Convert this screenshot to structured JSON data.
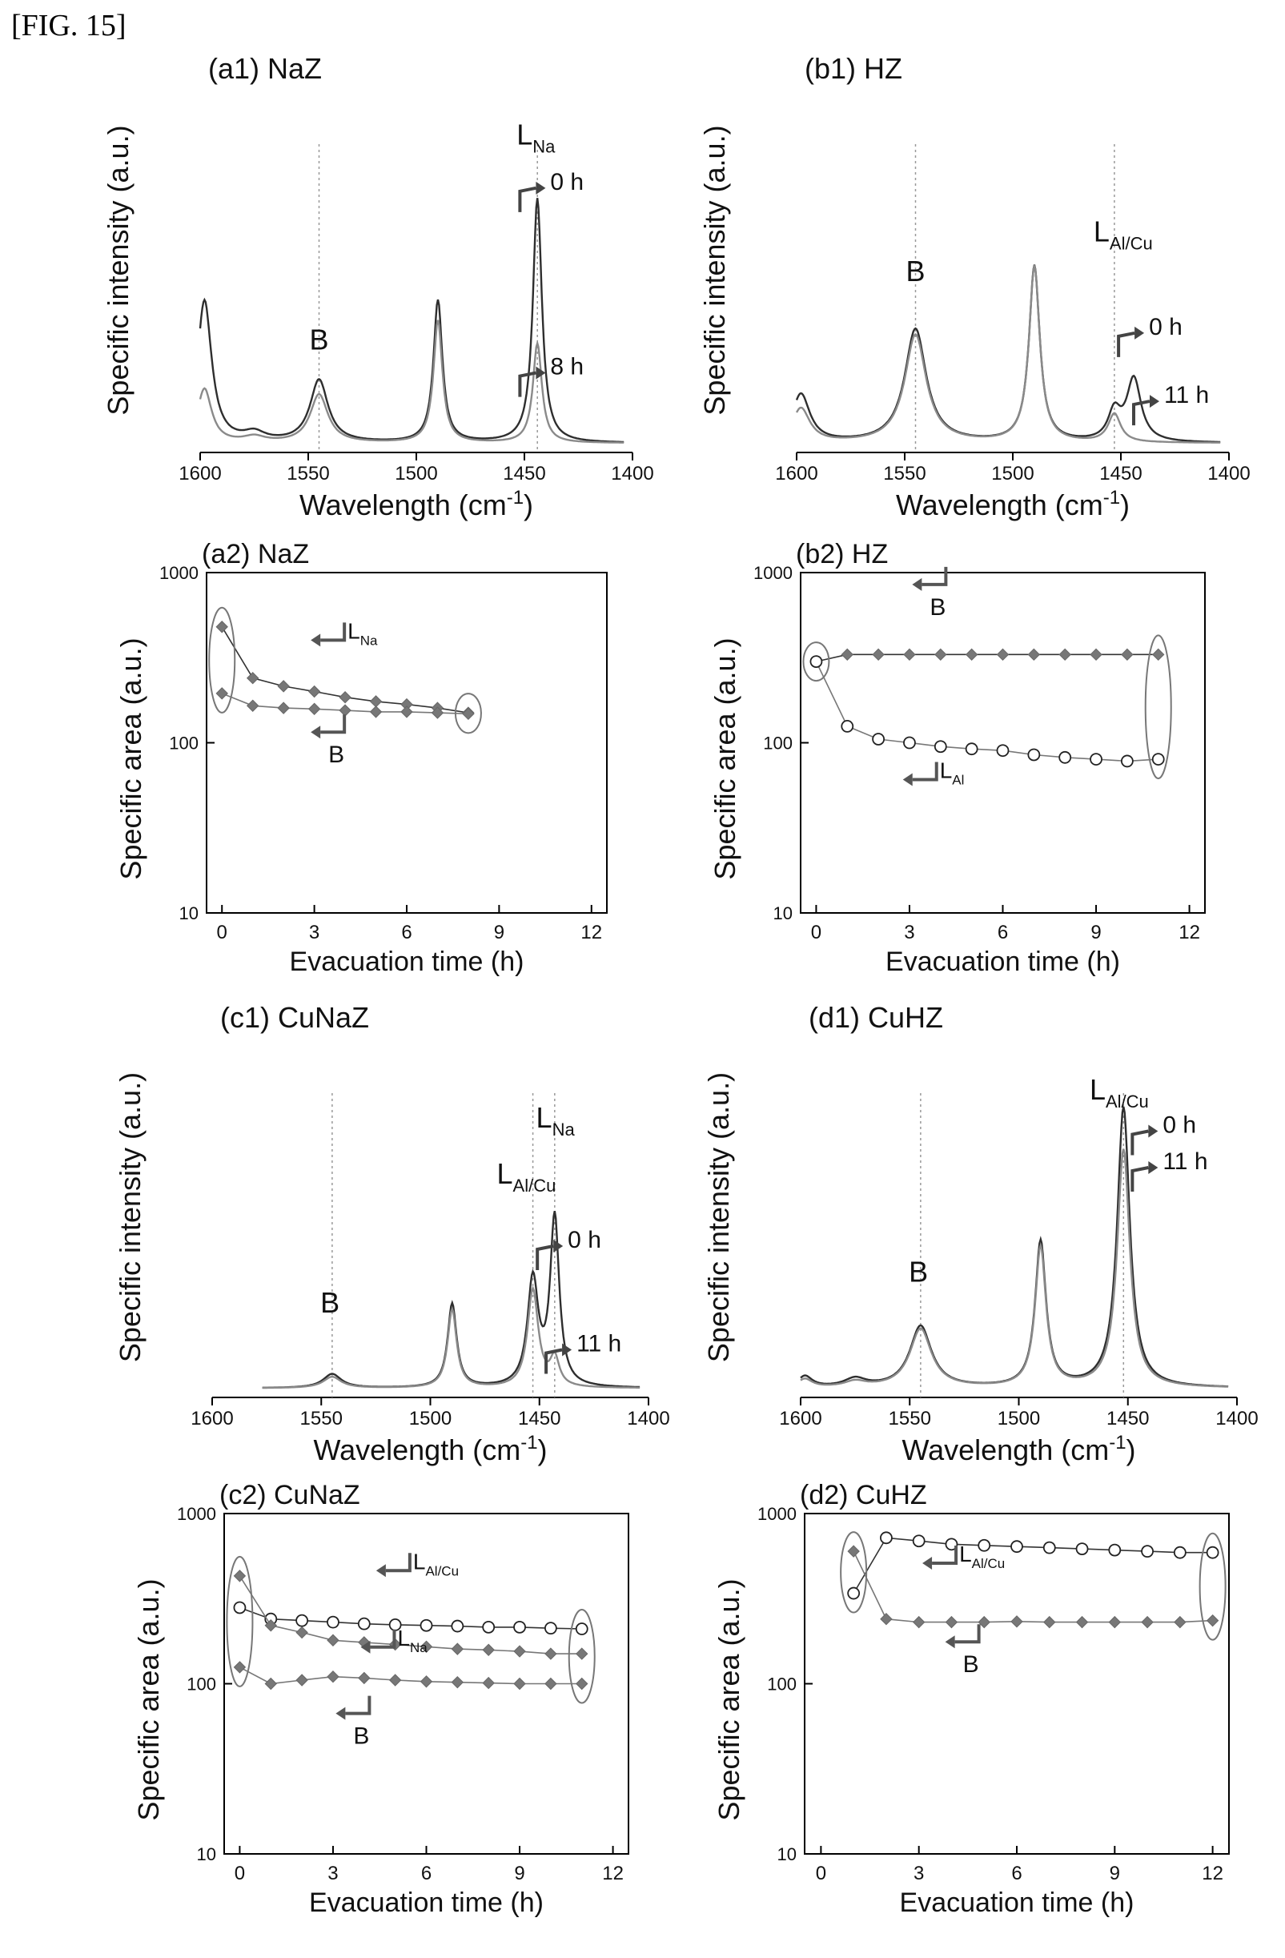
{
  "figure_label": "[FIG. 15]",
  "chart_data": [
    {
      "id": "a1",
      "type": "line",
      "title": "(a1) NaZ",
      "xlabel": "Wavelength (cm-1)",
      "ylabel": "Specific intensity (a.u.)",
      "xlim": [
        1600,
        1400
      ],
      "x_ticks": [
        1600,
        1550,
        1500,
        1450,
        1400
      ],
      "ylim": [
        0,
        1
      ],
      "peaks": [
        {
          "center": 1598,
          "width": 4,
          "heights": [
            0.5,
            0.19
          ]
        },
        {
          "center": 1575,
          "width": 6,
          "heights": [
            0.03,
            0.02
          ]
        },
        {
          "center": 1545,
          "width": 5,
          "heights": [
            0.22,
            0.17
          ]
        },
        {
          "center": 1490,
          "width": 2.5,
          "heights": [
            0.5,
            0.43
          ]
        },
        {
          "center": 1444,
          "width": 2.5,
          "heights": [
            0.86,
            0.35
          ]
        }
      ],
      "series": [
        {
          "name": "0 h"
        },
        {
          "name": "8 h"
        }
      ],
      "annotations": [
        {
          "text": "B",
          "x": 1545,
          "y": 0.34
        },
        {
          "text": "L",
          "sub": "Na",
          "x": 1444,
          "y": 1.06
        },
        {
          "text": "0 h",
          "x": 1438,
          "y": 0.93
        },
        {
          "text": "8 h",
          "x": 1438,
          "y": 0.28
        }
      ],
      "marker_lines": [
        1545,
        1444
      ]
    },
    {
      "id": "b1",
      "type": "line",
      "title": "(b1) HZ",
      "xlabel": "Wavelength (cm-1)",
      "ylabel": "Specific intensity (a.u.)",
      "xlim": [
        1600,
        1400
      ],
      "x_ticks": [
        1600,
        1550,
        1500,
        1450,
        1400
      ],
      "ylim": [
        0,
        1
      ],
      "peaks": [
        {
          "center": 1598,
          "width": 5,
          "heights": [
            0.17,
            0.12
          ]
        },
        {
          "center": 1545,
          "width": 6,
          "heights": [
            0.4,
            0.38
          ]
        },
        {
          "center": 1490,
          "width": 3,
          "heights": [
            0.62,
            0.62
          ]
        },
        {
          "center": 1453,
          "width": 3.5,
          "heights": [
            0.1,
            0.1
          ]
        },
        {
          "center": 1444,
          "width": 4,
          "heights": [
            0.22,
            0.0
          ]
        }
      ],
      "series": [
        {
          "name": "0 h"
        },
        {
          "name": "11 h"
        }
      ],
      "annotations": [
        {
          "text": "B",
          "x": 1545,
          "y": 0.58
        },
        {
          "text": "L",
          "sub": "Al/Cu",
          "x": 1453,
          "y": 0.72
        },
        {
          "text": "0 h",
          "x": 1437,
          "y": 0.42
        },
        {
          "text": "11 h",
          "x": 1430,
          "y": 0.18
        }
      ],
      "marker_lines": [
        1545,
        1453
      ]
    },
    {
      "id": "a2",
      "type": "scatter",
      "title": "(a2) NaZ",
      "xlabel": "Evacuation time (h)",
      "ylabel": "Specific area (a.u.)",
      "xlim": [
        -0.5,
        12.5
      ],
      "x_ticks": [
        0,
        3,
        6,
        9,
        12
      ],
      "ylim": [
        10,
        1000
      ],
      "y_scale": "log",
      "y_ticks": [
        10,
        100,
        1000
      ],
      "x": [
        0,
        1,
        2,
        3,
        4,
        5,
        6,
        7,
        8
      ],
      "series": [
        {
          "name": "L",
          "sub": "Na",
          "values": [
            480,
            240,
            215,
            200,
            185,
            175,
            168,
            160,
            150
          ]
        },
        {
          "name": "B",
          "values": [
            195,
            165,
            160,
            158,
            155,
            152,
            152,
            150,
            148
          ]
        }
      ],
      "annotations": [
        {
          "text": "L",
          "sub": "Na",
          "x": 3.3,
          "y": 330
        },
        {
          "text": "B",
          "x": 3.3,
          "y": 95
        }
      ]
    },
    {
      "id": "b2",
      "type": "scatter",
      "title": "(b2) HZ",
      "xlabel": "Evacuation time (h)",
      "ylabel": "Specific area (a.u.)",
      "xlim": [
        -0.5,
        12.5
      ],
      "x_ticks": [
        0,
        3,
        6,
        9,
        12
      ],
      "ylim": [
        10,
        1000
      ],
      "y_scale": "log",
      "y_ticks": [
        10,
        100,
        1000
      ],
      "x": [
        0,
        1,
        2,
        3,
        4,
        5,
        6,
        7,
        8,
        9,
        10,
        11
      ],
      "series": [
        {
          "name": "B",
          "values": [
            300,
            330,
            330,
            330,
            330,
            330,
            330,
            330,
            330,
            330,
            330,
            330
          ]
        },
        {
          "name": "L",
          "sub": "Al",
          "values": [
            300,
            125,
            105,
            100,
            95,
            92,
            90,
            85,
            82,
            80,
            78,
            80
          ]
        }
      ],
      "annotations": [
        {
          "text": "B",
          "x": 3.5,
          "y": 700
        },
        {
          "text": "L",
          "sub": "Al",
          "x": 3.2,
          "y": 50
        }
      ]
    },
    {
      "id": "c1",
      "type": "line",
      "title": "(c1) CuNaZ",
      "xlabel": "Wavelength (cm-1)",
      "ylabel": "Specific intensity (a.u.)",
      "xlim": [
        1600,
        1400
      ],
      "x_ticks": [
        1600,
        1550,
        1500,
        1450,
        1400
      ],
      "ylim": [
        0,
        1
      ],
      "x_start": 1577,
      "peaks": [
        {
          "center": 1545,
          "width": 5,
          "heights": [
            0.05,
            0.04
          ]
        },
        {
          "center": 1490,
          "width": 2.5,
          "heights": [
            0.3,
            0.28
          ]
        },
        {
          "center": 1453,
          "width": 3,
          "heights": [
            0.38,
            0.35
          ]
        },
        {
          "center": 1443,
          "width": 2.5,
          "heights": [
            0.6,
            0.1
          ]
        }
      ],
      "series": [
        {
          "name": "0 h"
        },
        {
          "name": "11 h"
        }
      ],
      "annotations": [
        {
          "text": "B",
          "x": 1546,
          "y": 0.28
        },
        {
          "text": "L",
          "sub": "Al/Cu",
          "x": 1460,
          "y": 0.74
        },
        {
          "text": "L",
          "sub": "Na",
          "x": 1442,
          "y": 0.94
        },
        {
          "text": "0 h",
          "x": 1437,
          "y": 0.54
        },
        {
          "text": "11 h",
          "x": 1433,
          "y": 0.17
        }
      ],
      "marker_lines": [
        1545,
        1453,
        1443
      ]
    },
    {
      "id": "d1",
      "type": "line",
      "title": "(d1) CuHZ",
      "xlabel": "Wavelength (cm-1)",
      "ylabel": "Specific intensity (a.u.)",
      "xlim": [
        1600,
        1400
      ],
      "x_ticks": [
        1600,
        1550,
        1500,
        1450,
        1400
      ],
      "ylim": [
        0,
        1
      ],
      "peaks": [
        {
          "center": 1598,
          "width": 4,
          "heights": [
            0.04,
            0.03
          ]
        },
        {
          "center": 1575,
          "width": 6,
          "heights": [
            0.03,
            0.02
          ]
        },
        {
          "center": 1545,
          "width": 6,
          "heights": [
            0.22,
            0.21
          ]
        },
        {
          "center": 1490,
          "width": 3,
          "heights": [
            0.52,
            0.5
          ]
        },
        {
          "center": 1452,
          "width": 3.5,
          "heights": [
            1.0,
            0.85
          ]
        }
      ],
      "series": [
        {
          "name": "0 h"
        },
        {
          "name": "11 h"
        }
      ],
      "annotations": [
        {
          "text": "B",
          "x": 1546,
          "y": 0.39
        },
        {
          "text": "L",
          "sub": "Al/Cu",
          "x": 1458,
          "y": 1.04
        },
        {
          "text": "0 h",
          "x": 1434,
          "y": 0.95
        },
        {
          "text": "11 h",
          "x": 1434,
          "y": 0.82
        }
      ],
      "marker_lines": [
        1545,
        1452
      ]
    },
    {
      "id": "c2",
      "type": "scatter",
      "title": "(c2) CuNaZ",
      "xlabel": "Evacuation time (h)",
      "ylabel": "Specific area (a.u.)",
      "xlim": [
        -0.5,
        12.5
      ],
      "x_ticks": [
        0,
        3,
        6,
        9,
        12
      ],
      "ylim": [
        10,
        1000
      ],
      "y_scale": "log",
      "y_ticks": [
        10,
        100,
        1000
      ],
      "x": [
        0,
        1,
        2,
        3,
        4,
        5,
        6,
        7,
        8,
        9,
        10,
        11
      ],
      "series": [
        {
          "name": "L",
          "sub": "Al/Cu",
          "values": [
            280,
            240,
            235,
            230,
            225,
            222,
            220,
            218,
            215,
            215,
            212,
            210
          ]
        },
        {
          "name": "L",
          "sub": "Na",
          "values": [
            430,
            220,
            200,
            180,
            175,
            170,
            165,
            160,
            158,
            155,
            150,
            150
          ]
        },
        {
          "name": "B",
          "values": [
            125,
            100,
            105,
            110,
            108,
            105,
            103,
            102,
            101,
            100,
            100,
            100
          ]
        }
      ],
      "annotations": [
        {
          "text": "L",
          "sub": "Al/Cu",
          "x": 4.8,
          "y": 380
        },
        {
          "text": "L",
          "sub": "Na",
          "x": 4.3,
          "y": 135
        },
        {
          "text": "B",
          "x": 3.5,
          "y": 55
        }
      ]
    },
    {
      "id": "d2",
      "type": "scatter",
      "title": "(d2) CuHZ",
      "xlabel": "Evacuation time (h)",
      "ylabel": "Specific area (a.u.)",
      "xlim": [
        -0.5,
        12.5
      ],
      "x_ticks": [
        0,
        3,
        6,
        9,
        12
      ],
      "ylim": [
        10,
        1000
      ],
      "y_scale": "log",
      "y_ticks": [
        10,
        100,
        1000
      ],
      "x": [
        1,
        2,
        3,
        4,
        5,
        6,
        7,
        8,
        9,
        10,
        11,
        12
      ],
      "series": [
        {
          "name": "L",
          "sub": "Al/Cu",
          "values": [
            340,
            720,
            690,
            660,
            650,
            640,
            630,
            620,
            610,
            600,
            590,
            590
          ]
        },
        {
          "name": "B",
          "values": [
            600,
            240,
            230,
            230,
            230,
            232,
            230,
            230,
            230,
            230,
            230,
            235
          ]
        }
      ],
      "annotations": [
        {
          "text": "L",
          "sub": "Al/Cu",
          "x": 3.5,
          "y": 420
        },
        {
          "text": "B",
          "x": 4.2,
          "y": 145
        }
      ]
    }
  ]
}
